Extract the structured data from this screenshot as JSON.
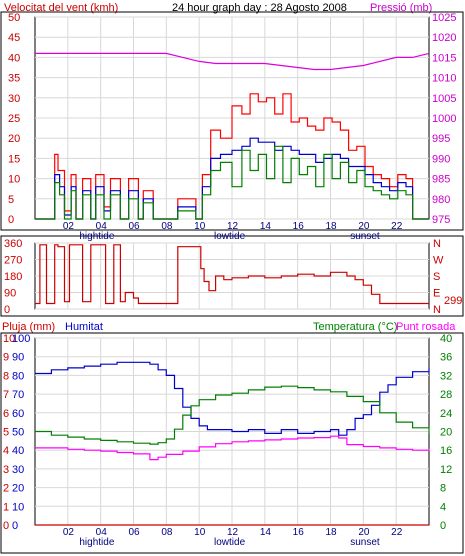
{
  "header": {
    "left_title": "Velocitat del vent (kmh)",
    "center_title": "24 hour graph day : 28 Agosto 2008",
    "right_title": "Pressió (mb)"
  },
  "colors": {
    "wind_avg": "#0000cc",
    "wind_gust": "#ff0000",
    "wind_dark": "#008000",
    "pressure": "#dd00dd",
    "direction": "#cc0000",
    "humidity": "#0000cc",
    "temperature": "#008000",
    "dewpoint": "#ff00ff",
    "rain": "#cc0000",
    "grid": "#d8d8d8",
    "frame": "#000000"
  },
  "chart_data": [
    {
      "id": "wind",
      "type": "line",
      "title": "24 hour graph day : 28 Agosto 2008",
      "xlabel": "",
      "ylabel": "Velocitat del vent (kmh)",
      "y2label": "Pressió (mb)",
      "xlim": [
        0,
        24
      ],
      "ylim": [
        0,
        50
      ],
      "y2lim": [
        975,
        1025
      ],
      "x_ticks": [
        "02",
        "04",
        "06",
        "08",
        "10",
        "12",
        "14",
        "16",
        "18",
        "20",
        "22"
      ],
      "y_ticks": [
        0,
        5,
        10,
        15,
        20,
        25,
        30,
        35,
        40,
        45,
        50
      ],
      "y2_ticks": [
        975,
        980,
        985,
        990,
        995,
        1000,
        1005,
        1010,
        1015,
        1020,
        1025
      ],
      "x_annotations": [
        {
          "text": "hightide",
          "x": 3.8
        },
        {
          "text": "lowtide",
          "x": 12
        },
        {
          "text": "sunset",
          "x": 20.3
        }
      ],
      "grid": true,
      "series": [
        {
          "key": "pressure",
          "axis": "right",
          "x": [
            0,
            2,
            4,
            6,
            8,
            9,
            10,
            11,
            12,
            14,
            16,
            17,
            18,
            19,
            20,
            21,
            22,
            23,
            24
          ],
          "values": [
            1016,
            1016,
            1016,
            1016,
            1016,
            1015,
            1014,
            1013.5,
            1013.5,
            1013.5,
            1012.5,
            1012,
            1012,
            1012.5,
            1013,
            1014,
            1015,
            1015,
            1016
          ]
        },
        {
          "key": "wind_gust",
          "axis": "left",
          "x": [
            0,
            1.2,
            1.4,
            1.8,
            2.2,
            2.5,
            2.9,
            3.4,
            3.7,
            4.2,
            4.6,
            5.2,
            5.7,
            6.3,
            6.6,
            7.2,
            8.3,
            8.7,
            9.8,
            10.2,
            10.7,
            11.3,
            12,
            12.6,
            13.1,
            13.6,
            14.1,
            14.6,
            15.1,
            15.6,
            16.1,
            16.6,
            17.1,
            17.6,
            18.1,
            18.6,
            19.1,
            19.6,
            20.1,
            20.6,
            21.1,
            21.6,
            22.1,
            22.6,
            23,
            24
          ],
          "values": [
            0,
            16,
            12,
            2,
            11,
            0,
            10,
            0,
            11,
            3,
            10,
            0,
            10,
            0,
            7,
            0,
            0,
            5,
            0,
            11,
            22,
            20,
            28,
            26,
            31,
            29,
            30,
            26,
            31,
            24,
            25,
            23,
            22,
            25,
            24,
            22,
            17,
            18,
            13,
            11,
            10,
            8,
            11,
            10,
            0,
            0
          ]
        },
        {
          "key": "wind_avg",
          "axis": "left",
          "x": [
            0,
            1.2,
            1.5,
            1.8,
            2.2,
            2.5,
            2.9,
            3.4,
            3.7,
            4.2,
            4.6,
            5.2,
            5.7,
            6.3,
            6.6,
            7.2,
            8.3,
            8.7,
            9.8,
            10.2,
            10.7,
            11.3,
            12,
            12.6,
            13.1,
            13.6,
            14.1,
            14.6,
            15.1,
            15.6,
            16.1,
            16.6,
            17.1,
            17.6,
            18.1,
            18.6,
            19.1,
            19.6,
            20.1,
            20.6,
            21.1,
            21.6,
            22.1,
            22.6,
            23,
            24
          ],
          "values": [
            0,
            11,
            8,
            1,
            8,
            0,
            7,
            0,
            8,
            2,
            7,
            0,
            7,
            0,
            5,
            0,
            0,
            3,
            0,
            8,
            15,
            16,
            17,
            18,
            20,
            19,
            19,
            17,
            18,
            17,
            16,
            16,
            14,
            15,
            16,
            15,
            13,
            13,
            11,
            9,
            8,
            7,
            9,
            8,
            0,
            0
          ]
        },
        {
          "key": "wind_dark",
          "axis": "left",
          "x": [
            0,
            1.2,
            1.5,
            1.8,
            2.2,
            2.5,
            2.9,
            3.4,
            3.7,
            4.2,
            4.6,
            5.2,
            5.7,
            6.3,
            6.6,
            7.2,
            8.3,
            8.7,
            9.8,
            10.2,
            10.7,
            11.3,
            12,
            12.6,
            13.1,
            13.6,
            14.1,
            14.6,
            15.1,
            15.6,
            16.1,
            16.6,
            17.1,
            17.6,
            18.1,
            18.6,
            19.1,
            19.6,
            20.1,
            20.6,
            21.1,
            21.6,
            22.1,
            22.6,
            23,
            24
          ],
          "values": [
            0,
            9,
            6,
            0,
            7,
            0,
            6,
            0,
            6,
            0,
            6,
            0,
            5,
            0,
            4,
            0,
            0,
            2,
            0,
            6,
            12,
            14,
            8,
            17,
            12,
            16,
            10,
            18,
            9,
            15,
            11,
            13,
            8,
            16,
            10,
            14,
            9,
            12,
            8,
            7,
            6,
            5,
            7,
            6,
            0,
            0
          ]
        }
      ]
    },
    {
      "id": "direction",
      "type": "line",
      "xlim": [
        0,
        24
      ],
      "ylim": [
        0,
        360
      ],
      "y_ticks": [
        0,
        90,
        180,
        270,
        360
      ],
      "right_labels": [
        "N",
        "W",
        "S",
        "E",
        "N"
      ],
      "current_value": "299",
      "series": [
        {
          "key": "direction",
          "x": [
            0,
            0.3,
            0.5,
            0.7,
            1.2,
            1.4,
            1.8,
            2.1,
            2.4,
            2.9,
            3.4,
            3.7,
            4.3,
            4.8,
            5.2,
            5.5,
            6.0,
            6.3,
            7.2,
            8.3,
            8.7,
            9.6,
            10.1,
            10.3,
            10.6,
            11,
            11.5,
            12,
            13,
            14,
            15,
            16,
            17,
            18,
            19,
            19.5,
            20,
            20.5,
            21,
            21.5,
            22,
            22.5,
            23,
            24
          ],
          "values": [
            30,
            350,
            350,
            30,
            350,
            340,
            40,
            350,
            350,
            40,
            350,
            350,
            30,
            350,
            40,
            90,
            60,
            30,
            30,
            30,
            340,
            340,
            220,
            150,
            100,
            180,
            160,
            170,
            180,
            170,
            180,
            190,
            180,
            200,
            180,
            160,
            130,
            80,
            30,
            30,
            30,
            30,
            30,
            30
          ]
        }
      ]
    },
    {
      "id": "humidity-temp",
      "type": "line",
      "left_label_1": "Pluja (mm)",
      "left_label_2": "Humitat",
      "right_label_1": "Temperatura (°C)",
      "right_label_2": "Punt rosada",
      "xlim": [
        0,
        24
      ],
      "ylim": [
        0,
        10
      ],
      "y1b_lim": [
        0,
        100
      ],
      "y2lim": [
        0,
        40
      ],
      "rain_ticks": [
        0,
        1,
        2,
        3,
        4,
        5,
        6,
        7,
        8,
        9,
        10
      ],
      "humidity_ticks": [
        0,
        10,
        20,
        30,
        40,
        50,
        60,
        70,
        80,
        90,
        100
      ],
      "temp_ticks": [
        0,
        4,
        8,
        12,
        16,
        20,
        24,
        28,
        32,
        36,
        40
      ],
      "x_ticks": [
        "02",
        "04",
        "06",
        "08",
        "10",
        "12",
        "14",
        "16",
        "18",
        "20",
        "22"
      ],
      "x_annotations": [
        {
          "text": "hightide",
          "x": 3.8
        },
        {
          "text": "lowtide",
          "x": 12
        },
        {
          "text": "sunset",
          "x": 20.3
        }
      ],
      "series": [
        {
          "key": "humidity",
          "axis": "left-hum",
          "x": [
            0,
            1,
            2,
            3,
            4,
            5,
            6,
            7,
            7.5,
            8,
            8.5,
            9,
            9.5,
            10,
            10.5,
            11,
            12,
            13,
            14,
            15,
            16,
            17,
            18,
            18.5,
            19,
            19.5,
            20,
            20.5,
            21,
            21.5,
            22,
            23,
            24
          ],
          "values": [
            81,
            83,
            84,
            85,
            86,
            87,
            87,
            86,
            83,
            80,
            73,
            63,
            57,
            53,
            51,
            51,
            50,
            51,
            49,
            51,
            49,
            50,
            51,
            48,
            51,
            57,
            59,
            64,
            71,
            75,
            79,
            82,
            84
          ]
        },
        {
          "key": "temperature",
          "axis": "right",
          "x": [
            0,
            1,
            2,
            3,
            4,
            5,
            6,
            7,
            7.5,
            8,
            8.5,
            9,
            9.5,
            10,
            11,
            12,
            13,
            14,
            15,
            16,
            17,
            18,
            19,
            20,
            21,
            22,
            23,
            24
          ],
          "values": [
            20,
            19.2,
            18.8,
            18.4,
            18.1,
            17.8,
            17.5,
            17.3,
            17.6,
            18.4,
            20.5,
            23.5,
            25.5,
            26.8,
            27.8,
            28.2,
            28.9,
            29.5,
            29.7,
            29.4,
            28.9,
            28.5,
            27.5,
            26.4,
            24,
            22,
            20.8,
            19.5
          ]
        },
        {
          "key": "dewpoint",
          "axis": "right",
          "x": [
            0,
            1,
            2,
            3,
            4,
            5,
            6,
            7,
            7.5,
            8,
            9,
            10,
            11,
            12,
            13,
            14,
            15,
            16,
            17,
            18,
            18.5,
            19,
            20,
            21,
            22,
            23,
            24
          ],
          "values": [
            16.5,
            16.5,
            16.2,
            16.0,
            15.8,
            15.5,
            15.2,
            14.0,
            14.5,
            15.1,
            15.8,
            16.7,
            17.4,
            17.8,
            18.0,
            18.2,
            18.4,
            18.6,
            18.7,
            19.0,
            18.6,
            17.2,
            16.8,
            16.5,
            16.2,
            16.0,
            16.3
          ]
        },
        {
          "key": "rain",
          "axis": "left-rain",
          "x": [
            0,
            24
          ],
          "values": [
            0,
            0
          ]
        }
      ]
    }
  ]
}
